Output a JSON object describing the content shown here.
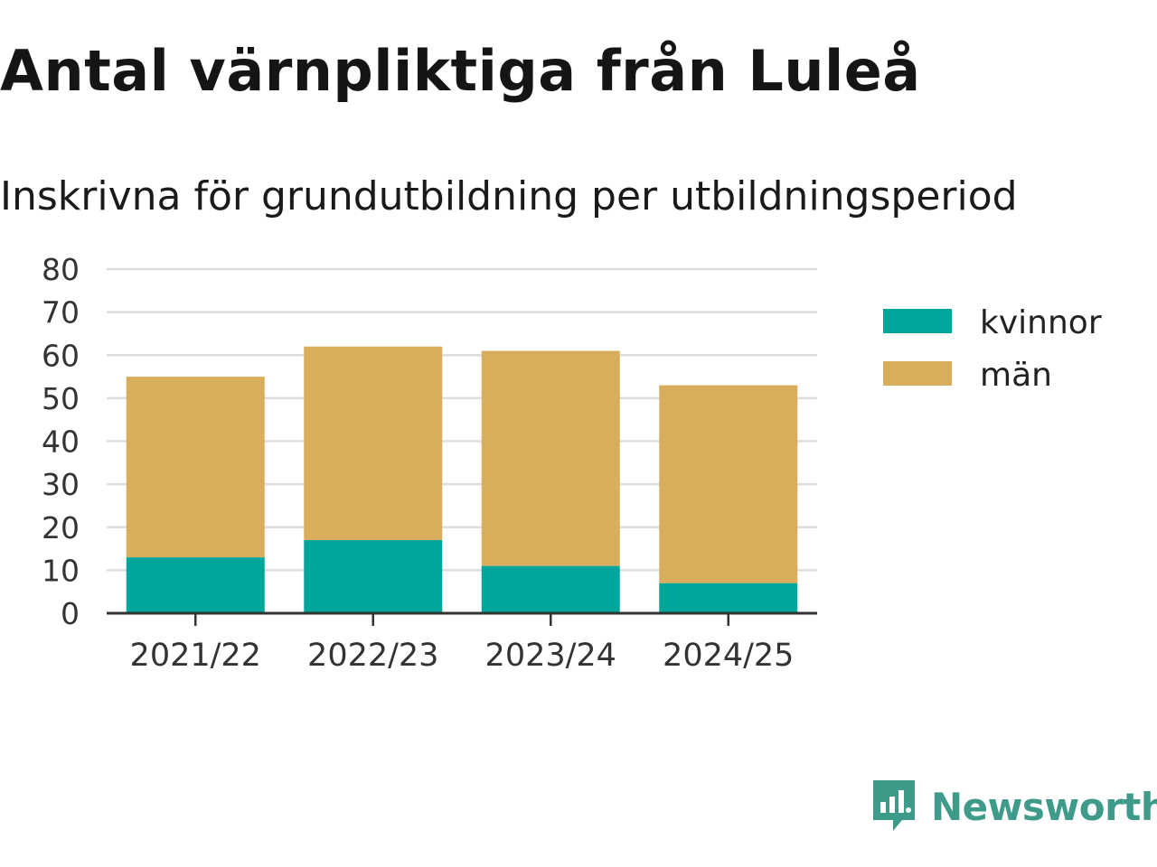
{
  "title": "Antal värnpliktiga från Luleå",
  "subtitle": "Inskrivna för grundutbildning per utbildningsperiod",
  "brand": {
    "name": "Newsworthy",
    "icon": "newsworthy-logo-icon"
  },
  "colors": {
    "kvinnor": "#00a59b",
    "man": "#d8ad5c",
    "grid": "#dddddd",
    "axis": "#333333"
  },
  "chart_data": {
    "type": "bar",
    "stacked": true,
    "categories": [
      "2021/22",
      "2022/23",
      "2023/24",
      "2024/25"
    ],
    "series": [
      {
        "name": "kvinnor",
        "values": [
          13,
          17,
          11,
          7
        ]
      },
      {
        "name": "män",
        "values": [
          42,
          45,
          50,
          46
        ]
      }
    ],
    "ylim": [
      0,
      80
    ],
    "yticks": [
      "0",
      "10",
      "20",
      "30",
      "40",
      "50",
      "60",
      "70",
      "80"
    ],
    "grid": true,
    "legend": "right"
  }
}
